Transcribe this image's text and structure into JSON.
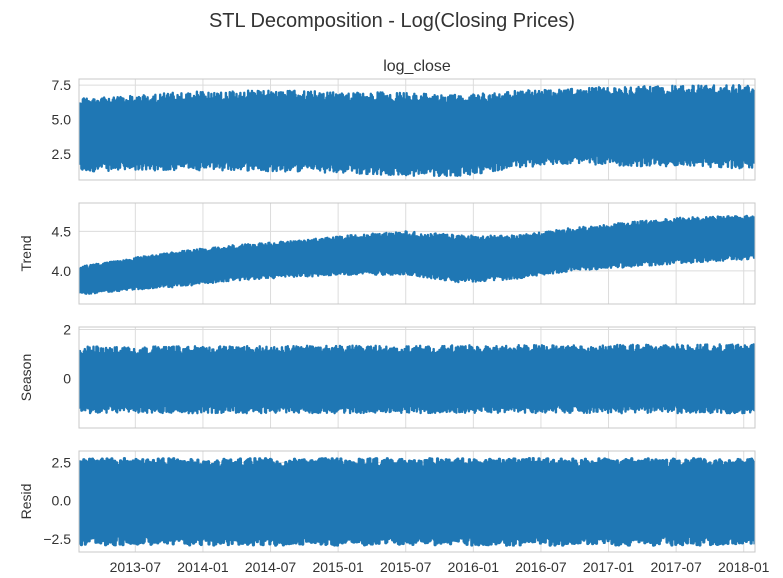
{
  "chart_data": {
    "type": "line",
    "title": "STL Decomposition - Log(Closing Prices)",
    "x_tick_labels": [
      "2013-07",
      "2014-01",
      "2014-07",
      "2015-01",
      "2015-07",
      "2016-01",
      "2016-07",
      "2017-01",
      "2017-07",
      "2018-01"
    ],
    "x_range": [
      "2013-02",
      "2018-02"
    ],
    "grid": true,
    "series_color": "#1f77b4",
    "panels": [
      {
        "name": "log_close",
        "title": "log_close",
        "ylabel": "",
        "ylim": [
          0.6,
          7.95
        ],
        "y_ticks": [
          2.5,
          5.0,
          7.5
        ],
        "y_tick_labels": [
          "2.5",
          "5.0",
          "7.5"
        ],
        "envelope_x": [
          "2013-02",
          "2013-06",
          "2013-11",
          "2014-04",
          "2014-09",
          "2015-02",
          "2015-07",
          "2015-12",
          "2016-05",
          "2016-10",
          "2017-03",
          "2017-08",
          "2018-02"
        ],
        "envelope_upper": [
          6.6,
          6.7,
          7.0,
          7.1,
          7.1,
          7.0,
          7.0,
          6.8,
          7.1,
          7.3,
          7.4,
          7.5,
          7.5
        ],
        "envelope_lower": [
          1.2,
          1.3,
          1.3,
          1.3,
          1.2,
          1.1,
          0.9,
          0.9,
          1.5,
          1.8,
          1.6,
          1.6,
          1.4
        ]
      },
      {
        "name": "Trend",
        "title": "",
        "ylabel": "Trend",
        "ylim": [
          3.58,
          4.86
        ],
        "y_ticks": [
          4.0,
          4.5
        ],
        "y_tick_labels": [
          "4.0",
          "4.5"
        ],
        "envelope_x": [
          "2013-02",
          "2013-06",
          "2013-11",
          "2014-04",
          "2014-09",
          "2015-02",
          "2015-07",
          "2015-12",
          "2016-05",
          "2016-10",
          "2017-03",
          "2017-08",
          "2018-02"
        ],
        "envelope_upper": [
          4.05,
          4.15,
          4.25,
          4.33,
          4.38,
          4.45,
          4.5,
          4.45,
          4.45,
          4.55,
          4.62,
          4.68,
          4.7
        ],
        "envelope_lower": [
          3.7,
          3.75,
          3.8,
          3.88,
          3.92,
          3.95,
          3.95,
          3.85,
          3.9,
          4.0,
          4.05,
          4.1,
          4.15
        ]
      },
      {
        "name": "Season",
        "title": "",
        "ylabel": "Season",
        "ylim": [
          -2.0,
          2.1
        ],
        "y_ticks": [
          0,
          2
        ],
        "y_tick_labels": [
          "0",
          "2"
        ],
        "envelope_x": [
          "2013-02",
          "2018-02"
        ],
        "envelope_upper": [
          1.3,
          1.4
        ],
        "envelope_lower": [
          -1.4,
          -1.4
        ]
      },
      {
        "name": "Resid",
        "title": "",
        "ylabel": "Resid",
        "ylim": [
          -3.35,
          3.25
        ],
        "y_ticks": [
          -2.5,
          0.0,
          2.5
        ],
        "y_tick_labels": [
          "−2.5",
          "0.0",
          "2.5"
        ],
        "envelope_x": [
          "2013-02",
          "2018-02"
        ],
        "envelope_upper": [
          2.75,
          2.75
        ],
        "envelope_lower": [
          -2.9,
          -2.9
        ]
      }
    ]
  }
}
